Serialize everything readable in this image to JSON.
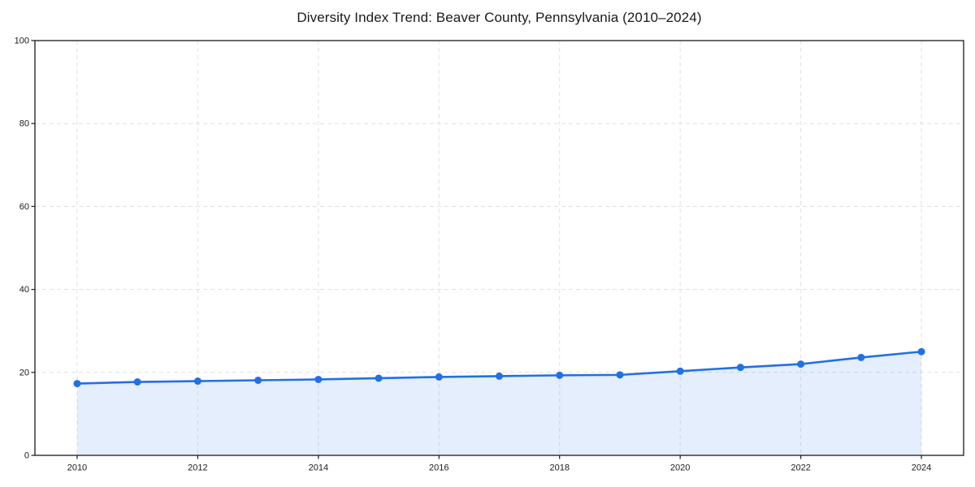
{
  "chart_data": {
    "type": "line",
    "title": "Diversity Index Trend: Beaver County, Pennsylvania (2010–2024)",
    "xlabel": "",
    "ylabel": "",
    "x": [
      2010,
      2011,
      2012,
      2013,
      2014,
      2015,
      2016,
      2017,
      2018,
      2019,
      2020,
      2021,
      2022,
      2023,
      2024
    ],
    "values": [
      17.3,
      17.7,
      17.9,
      18.1,
      18.3,
      18.6,
      18.9,
      19.1,
      19.3,
      19.4,
      20.3,
      21.2,
      22.0,
      23.6,
      25.0
    ],
    "xlim": [
      2009.3,
      2024.7
    ],
    "ylim": [
      0,
      100
    ],
    "xticks": [
      2010,
      2012,
      2014,
      2016,
      2018,
      2020,
      2022,
      2024
    ],
    "yticks": [
      0,
      20,
      40,
      60,
      80,
      100
    ],
    "grid": "dashed",
    "legend": "none",
    "colors": {
      "line": "#2170e4",
      "marker": "#2170e4",
      "fill": "#2170e4",
      "fill_opacity": 0.12,
      "grid": "#e0e0e0",
      "axis": "#1a1a1a",
      "background": "#ffffff"
    }
  }
}
